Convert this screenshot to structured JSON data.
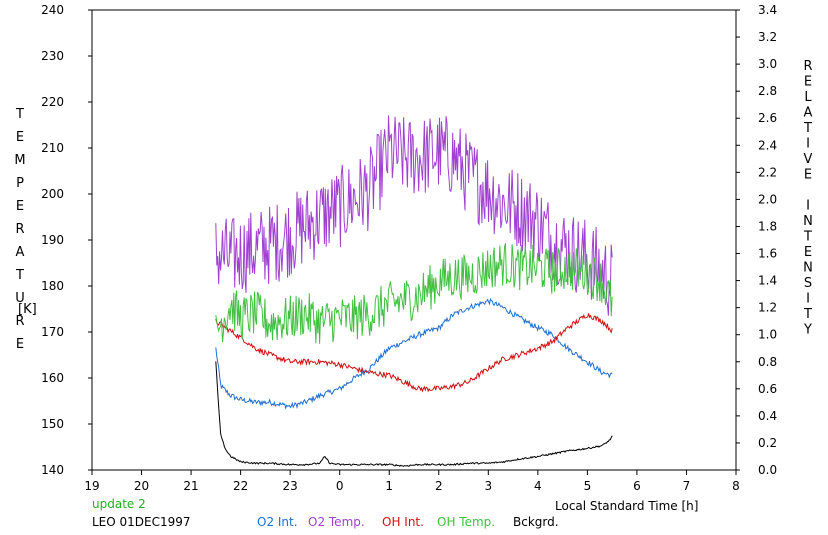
{
  "chart_data": {
    "type": "line",
    "left_axis": {
      "label": "TEMPERATURE",
      "unit": "[K]",
      "range": [
        140,
        240
      ],
      "ticks": [
        140,
        150,
        160,
        170,
        180,
        190,
        200,
        210,
        220,
        230,
        240
      ]
    },
    "right_axis": {
      "label": "RELATIVE INTENSITY",
      "range": [
        0.0,
        3.4
      ],
      "ticks": [
        "0.0",
        "0.2",
        "0.4",
        "0.6",
        "0.8",
        "1.0",
        "1.2",
        "1.4",
        "1.6",
        "1.8",
        "2.0",
        "2.2",
        "2.4",
        "2.6",
        "2.8",
        "3.0",
        "3.2",
        "3.4"
      ]
    },
    "x_axis": {
      "label": "Local Standard Time [h]",
      "range_hours_from_19": [
        0,
        13
      ],
      "tick_labels": [
        "19",
        "20",
        "21",
        "22",
        "23",
        "0",
        "1",
        "2",
        "3",
        "4",
        "5",
        "6",
        "7",
        "8"
      ]
    },
    "series": [
      {
        "name": "O2 Int.",
        "axis": "right",
        "color": "#1e6fd0",
        "x": [
          21.5,
          21.6,
          21.8,
          22.0,
          22.3,
          22.6,
          23.0,
          23.3,
          23.6,
          24.0,
          24.3,
          24.6,
          25.0,
          25.3,
          25.6,
          26.0,
          26.3,
          26.6,
          27.0,
          27.3,
          27.6,
          28.0,
          28.3,
          28.6,
          29.0,
          29.3,
          29.5
        ],
        "y": [
          0.9,
          0.62,
          0.55,
          0.52,
          0.5,
          0.5,
          0.47,
          0.5,
          0.55,
          0.6,
          0.68,
          0.75,
          0.9,
          0.95,
          1.0,
          1.05,
          1.15,
          1.2,
          1.25,
          1.2,
          1.13,
          1.05,
          1.0,
          0.9,
          0.8,
          0.72,
          0.7
        ]
      },
      {
        "name": "O2 Temp.",
        "axis": "left",
        "color": "#a040d0",
        "x": [
          21.5,
          21.8,
          22.0,
          22.3,
          22.6,
          23.0,
          23.3,
          23.6,
          24.0,
          24.3,
          24.6,
          25.0,
          25.3,
          25.6,
          26.0,
          26.3,
          26.6,
          27.0,
          27.3,
          27.6,
          28.0,
          28.3,
          28.6,
          29.0,
          29.3,
          29.5
        ],
        "y": [
          187,
          186,
          187,
          188,
          189,
          191,
          193,
          195,
          197,
          199,
          201,
          209,
          208,
          208,
          209,
          208,
          204,
          201,
          198,
          197,
          194,
          190,
          188,
          186,
          183,
          181
        ]
      },
      {
        "name": "OH Int.",
        "axis": "right",
        "color": "#d01010",
        "x": [
          21.5,
          21.7,
          22.0,
          22.3,
          22.6,
          23.0,
          23.3,
          23.6,
          24.0,
          24.3,
          24.6,
          25.0,
          25.3,
          25.6,
          26.0,
          26.3,
          26.6,
          27.0,
          27.3,
          27.6,
          28.0,
          28.3,
          28.6,
          29.0,
          29.3,
          29.5
        ],
        "y": [
          1.1,
          1.05,
          0.98,
          0.9,
          0.85,
          0.8,
          0.8,
          0.8,
          0.78,
          0.75,
          0.72,
          0.7,
          0.65,
          0.6,
          0.6,
          0.62,
          0.65,
          0.75,
          0.82,
          0.85,
          0.9,
          0.95,
          1.05,
          1.15,
          1.1,
          1.03
        ]
      },
      {
        "name": "OH Temp.",
        "axis": "left",
        "color": "#40c040",
        "x": [
          21.5,
          21.8,
          22.0,
          22.3,
          22.6,
          23.0,
          23.3,
          23.6,
          24.0,
          24.3,
          24.6,
          25.0,
          25.3,
          25.6,
          26.0,
          26.3,
          26.6,
          27.0,
          27.3,
          27.6,
          28.0,
          28.3,
          28.6,
          29.0,
          29.3,
          29.5
        ],
        "y": [
          170,
          176,
          173,
          174,
          172,
          173,
          174,
          172,
          173,
          173,
          174,
          176,
          177,
          178,
          181,
          182,
          182,
          184,
          185,
          184,
          184,
          183,
          184,
          183,
          181,
          176
        ]
      },
      {
        "name": "Bckgrd.",
        "axis": "right",
        "color": "#000000",
        "x": [
          21.5,
          21.55,
          21.6,
          21.7,
          21.8,
          22.0,
          22.3,
          22.6,
          23.0,
          23.3,
          23.6,
          23.7,
          23.8,
          24.0,
          24.3,
          24.6,
          25.0,
          25.3,
          25.6,
          26.0,
          26.3,
          26.6,
          27.0,
          27.3,
          27.6,
          28.0,
          28.3,
          28.6,
          29.0,
          29.3,
          29.45,
          29.5
        ],
        "y": [
          0.8,
          0.5,
          0.25,
          0.15,
          0.1,
          0.06,
          0.05,
          0.05,
          0.04,
          0.04,
          0.05,
          0.1,
          0.05,
          0.04,
          0.04,
          0.04,
          0.04,
          0.03,
          0.04,
          0.04,
          0.04,
          0.05,
          0.05,
          0.06,
          0.08,
          0.1,
          0.12,
          0.14,
          0.16,
          0.18,
          0.22,
          0.25
        ]
      }
    ]
  },
  "footer": {
    "update_label": "update 2",
    "station_label": "LEO 01DEC1997"
  },
  "legend": [
    {
      "label": "O2 Int.",
      "color": "#1e6fd0"
    },
    {
      "label": "O2 Temp.",
      "color": "#a040d0"
    },
    {
      "label": "OH Int.",
      "color": "#d01010"
    },
    {
      "label": "OH Temp.",
      "color": "#40c040"
    },
    {
      "label": "Bckgrd.",
      "color": "#000000"
    }
  ],
  "colors": {
    "update_label": "#20b020"
  }
}
